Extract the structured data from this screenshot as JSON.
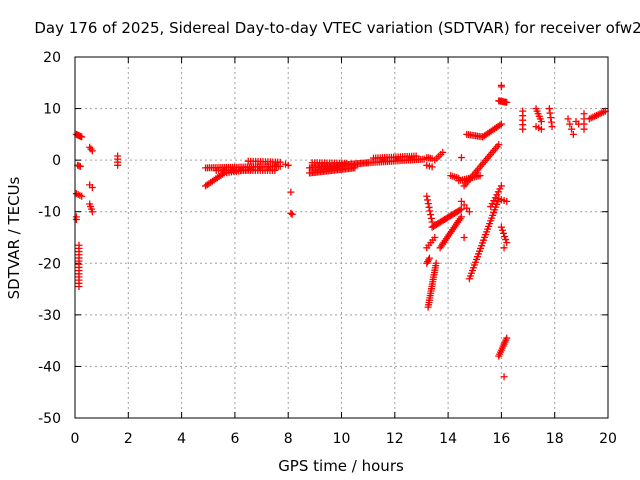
{
  "chart_data": {
    "type": "scatter",
    "title": "Day 176 of 2025, Sidereal Day-to-day VTEC variation (SDTVAR) for receiver ofw2",
    "xlabel": "GPS time / hours",
    "ylabel": "SDTVAR / TECUs",
    "xlim": [
      0,
      20
    ],
    "ylim": [
      -50,
      20
    ],
    "xticks": [
      "0",
      "2",
      "4",
      "6",
      "8",
      "10",
      "12",
      "14",
      "16",
      "18",
      "20"
    ],
    "yticks": [
      "-50",
      "-40",
      "-30",
      "-20",
      "-10",
      "0",
      "10",
      "20"
    ],
    "grid": true,
    "marker": "plus",
    "color": "#ff0000",
    "segments": [
      {
        "x0": 0.05,
        "y0": 5.0,
        "x1": 0.25,
        "y1": 4.5,
        "n": 6
      },
      {
        "x0": 0.1,
        "y0": -1.0,
        "x1": 0.2,
        "y1": -1.2,
        "n": 3
      },
      {
        "x0": 0.05,
        "y0": -6.5,
        "x1": 0.25,
        "y1": -7.0,
        "n": 4
      },
      {
        "x0": 0.05,
        "y0": -11.0,
        "x1": 0.05,
        "y1": -11.5,
        "n": 2
      },
      {
        "x0": 0.15,
        "y0": -16.5,
        "x1": 0.15,
        "y1": -24.5,
        "n": 14
      },
      {
        "x0": 0.55,
        "y0": 2.5,
        "x1": 0.65,
        "y1": 1.8,
        "n": 3
      },
      {
        "x0": 0.55,
        "y0": -4.8,
        "x1": 0.65,
        "y1": -5.3,
        "n": 2
      },
      {
        "x0": 0.55,
        "y0": -8.5,
        "x1": 0.65,
        "y1": -10.0,
        "n": 4
      },
      {
        "x0": 1.6,
        "y0": 0.8,
        "x1": 1.6,
        "y1": -1.0,
        "n": 4
      },
      {
        "x0": 4.9,
        "y0": -5.0,
        "x1": 5.6,
        "y1": -2.5,
        "n": 12
      },
      {
        "x0": 5.6,
        "y0": -2.5,
        "x1": 6.6,
        "y1": -1.8,
        "n": 12
      },
      {
        "x0": 4.9,
        "y0": -1.5,
        "x1": 7.7,
        "y1": -1.2,
        "n": 40
      },
      {
        "x0": 5.3,
        "y0": -2.0,
        "x1": 7.5,
        "y1": -2.0,
        "n": 25
      },
      {
        "x0": 6.5,
        "y0": -0.2,
        "x1": 7.7,
        "y1": -0.4,
        "n": 14
      },
      {
        "x0": 7.9,
        "y0": -0.8,
        "x1": 8.0,
        "y1": -1.0,
        "n": 2
      },
      {
        "x0": 8.1,
        "y0": -6.2,
        "x1": 8.1,
        "y1": -6.3,
        "n": 1
      },
      {
        "x0": 8.1,
        "y0": -10.3,
        "x1": 8.15,
        "y1": -10.5,
        "n": 2
      },
      {
        "x0": 8.8,
        "y0": -1.5,
        "x1": 11.0,
        "y1": -0.5,
        "n": 40
      },
      {
        "x0": 8.8,
        "y0": -2.5,
        "x1": 10.5,
        "y1": -1.5,
        "n": 30
      },
      {
        "x0": 8.9,
        "y0": -0.5,
        "x1": 10.2,
        "y1": -0.6,
        "n": 15
      },
      {
        "x0": 11.0,
        "y0": -0.5,
        "x1": 13.1,
        "y1": 0.2,
        "n": 30
      },
      {
        "x0": 11.2,
        "y0": 0.4,
        "x1": 12.8,
        "y1": 0.8,
        "n": 20
      },
      {
        "x0": 13.2,
        "y0": 0.5,
        "x1": 13.4,
        "y1": 0.3,
        "n": 4
      },
      {
        "x0": 13.2,
        "y0": -1.0,
        "x1": 13.4,
        "y1": -1.3,
        "n": 3
      },
      {
        "x0": 13.5,
        "y0": 0.0,
        "x1": 13.8,
        "y1": 1.5,
        "n": 5
      },
      {
        "x0": 13.25,
        "y0": -28.5,
        "x1": 13.55,
        "y1": -20.0,
        "n": 20
      },
      {
        "x0": 13.2,
        "y0": -20.0,
        "x1": 13.3,
        "y1": -19.0,
        "n": 4
      },
      {
        "x0": 13.2,
        "y0": -17.0,
        "x1": 13.5,
        "y1": -15.0,
        "n": 5
      },
      {
        "x0": 13.2,
        "y0": -7.0,
        "x1": 13.4,
        "y1": -12.0,
        "n": 8
      },
      {
        "x0": 13.4,
        "y0": -13.0,
        "x1": 14.5,
        "y1": -9.5,
        "n": 22
      },
      {
        "x0": 13.7,
        "y0": -17.0,
        "x1": 14.5,
        "y1": -11.0,
        "n": 18
      },
      {
        "x0": 14.1,
        "y0": -3.0,
        "x1": 14.4,
        "y1": -3.5,
        "n": 5
      },
      {
        "x0": 14.5,
        "y0": 0.5,
        "x1": 14.5,
        "y1": 0.5,
        "n": 1
      },
      {
        "x0": 14.4,
        "y0": -4.0,
        "x1": 15.2,
        "y1": -3.0,
        "n": 12
      },
      {
        "x0": 14.6,
        "y0": -5.0,
        "x1": 15.9,
        "y1": 3.0,
        "n": 22
      },
      {
        "x0": 14.7,
        "y0": 5.0,
        "x1": 15.3,
        "y1": 4.5,
        "n": 10
      },
      {
        "x0": 15.3,
        "y0": 4.5,
        "x1": 16.0,
        "y1": 7.0,
        "n": 12
      },
      {
        "x0": 14.5,
        "y0": -8.0,
        "x1": 14.8,
        "y1": -10.0,
        "n": 4
      },
      {
        "x0": 14.6,
        "y0": -15.0,
        "x1": 14.6,
        "y1": -15.3,
        "n": 1
      },
      {
        "x0": 14.8,
        "y0": -23.0,
        "x1": 15.9,
        "y1": -7.5,
        "n": 30
      },
      {
        "x0": 15.6,
        "y0": -9.0,
        "x1": 16.0,
        "y1": -5.0,
        "n": 8
      },
      {
        "x0": 15.9,
        "y0": 11.5,
        "x1": 16.2,
        "y1": 11.2,
        "n": 8
      },
      {
        "x0": 16.0,
        "y0": 14.5,
        "x1": 16.0,
        "y1": 14.2,
        "n": 2
      },
      {
        "x0": 15.9,
        "y0": -7.5,
        "x1": 16.2,
        "y1": -8.0,
        "n": 4
      },
      {
        "x0": 16.0,
        "y0": -13.0,
        "x1": 16.2,
        "y1": -16.0,
        "n": 6
      },
      {
        "x0": 16.1,
        "y0": -17.0,
        "x1": 16.1,
        "y1": -17.2,
        "n": 1
      },
      {
        "x0": 15.9,
        "y0": -38.0,
        "x1": 16.2,
        "y1": -34.5,
        "n": 10
      },
      {
        "x0": 16.1,
        "y0": -42.0,
        "x1": 16.1,
        "y1": -42.0,
        "n": 1
      },
      {
        "x0": 16.8,
        "y0": 9.5,
        "x1": 16.8,
        "y1": 6.0,
        "n": 5
      },
      {
        "x0": 17.3,
        "y0": 10.0,
        "x1": 17.5,
        "y1": 7.5,
        "n": 6
      },
      {
        "x0": 17.3,
        "y0": 6.5,
        "x1": 17.5,
        "y1": 6.0,
        "n": 3
      },
      {
        "x0": 17.8,
        "y0": 10.0,
        "x1": 17.9,
        "y1": 6.5,
        "n": 5
      },
      {
        "x0": 18.5,
        "y0": 8.0,
        "x1": 18.7,
        "y1": 5.0,
        "n": 4
      },
      {
        "x0": 18.8,
        "y0": 7.5,
        "x1": 18.9,
        "y1": 7.0,
        "n": 2
      },
      {
        "x0": 19.1,
        "y0": 9.0,
        "x1": 19.1,
        "y1": 6.0,
        "n": 4
      },
      {
        "x0": 19.3,
        "y0": 8.0,
        "x1": 19.9,
        "y1": 9.5,
        "n": 10
      }
    ]
  }
}
